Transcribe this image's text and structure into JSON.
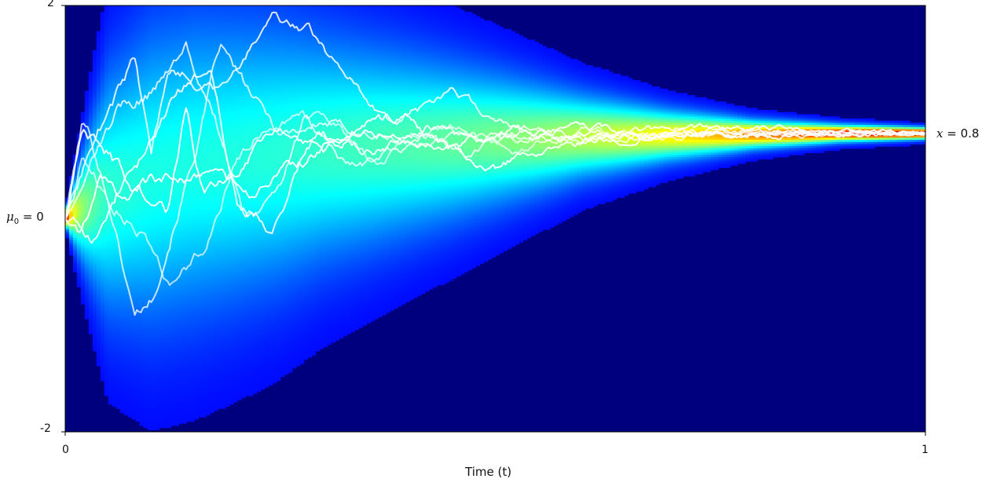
{
  "chart_data": {
    "type": "heatmap",
    "title": "",
    "xlabel": "Time (t)",
    "ylabel": "",
    "xlim": [
      0,
      1
    ],
    "ylim": [
      -2,
      2
    ],
    "x_ticks": [
      "0",
      "1"
    ],
    "y_ticks": [
      "2",
      "-2"
    ],
    "grid": false,
    "colormap": "jet",
    "background_color": "#00007f",
    "path_color": "#ffffff",
    "start_annotation": {
      "symbol": "μ",
      "subscript": "0",
      "value": "0",
      "y": 0
    },
    "end_annotation": {
      "variable": "x",
      "value": "0.8",
      "y": 0.8
    },
    "density": {
      "description_units": "mean and std of path distribution at time t",
      "t": [
        0.0,
        0.05,
        0.1,
        0.15,
        0.2,
        0.25,
        0.3,
        0.4,
        0.5,
        0.6,
        0.7,
        0.8,
        0.9,
        1.0
      ],
      "mean": [
        0.0,
        0.25,
        0.4,
        0.5,
        0.55,
        0.6,
        0.65,
        0.7,
        0.74,
        0.77,
        0.78,
        0.79,
        0.8,
        0.8
      ],
      "std": [
        0.02,
        0.45,
        0.55,
        0.55,
        0.52,
        0.48,
        0.42,
        0.33,
        0.24,
        0.15,
        0.09,
        0.05,
        0.03,
        0.02
      ]
    },
    "series": [
      {
        "t": [
          0.0,
          0.02,
          0.03,
          0.05,
          0.08,
          0.1,
          0.15,
          0.18,
          0.22,
          0.25,
          0.3,
          0.4,
          0.5,
          0.6,
          0.7,
          0.8,
          0.9,
          1.0
        ],
        "y": [
          0.0,
          0.9,
          0.75,
          0.2,
          -0.9,
          -0.75,
          0.6,
          1.6,
          1.1,
          0.8,
          0.9,
          0.7,
          0.8,
          0.75,
          0.78,
          0.8,
          0.8,
          0.8
        ]
      },
      {
        "t": [
          0.0,
          0.02,
          0.05,
          0.08,
          0.1,
          0.12,
          0.18,
          0.2,
          0.24,
          0.28,
          0.32,
          0.38,
          0.45,
          0.5,
          0.6,
          0.7,
          0.8,
          0.9,
          1.0
        ],
        "y": [
          0.0,
          0.5,
          1.0,
          1.5,
          0.6,
          1.4,
          1.2,
          1.4,
          1.9,
          1.8,
          1.4,
          0.9,
          1.2,
          0.9,
          0.75,
          0.85,
          0.8,
          0.8,
          0.8
        ]
      },
      {
        "t": [
          0.0,
          0.03,
          0.06,
          0.1,
          0.14,
          0.17,
          0.21,
          0.25,
          0.28,
          0.33,
          0.38,
          0.42,
          0.47,
          0.5,
          0.6,
          0.7,
          0.8,
          0.9,
          1.0
        ],
        "y": [
          0.0,
          0.6,
          1.0,
          1.2,
          1.6,
          1.1,
          0.0,
          0.3,
          0.95,
          0.5,
          0.6,
          0.8,
          0.6,
          0.75,
          0.78,
          0.8,
          0.8,
          0.8,
          0.8
        ]
      },
      {
        "t": [
          0.0,
          0.02,
          0.05,
          0.08,
          0.12,
          0.14,
          0.16,
          0.2,
          0.22,
          0.26,
          0.3,
          0.35,
          0.4,
          0.44,
          0.5,
          0.6,
          0.7,
          0.8,
          0.9,
          1.0
        ],
        "y": [
          0.0,
          0.8,
          0.6,
          0.25,
          0.05,
          1.0,
          0.25,
          0.4,
          0.7,
          0.8,
          0.6,
          0.9,
          0.95,
          0.65,
          0.5,
          0.7,
          0.8,
          0.85,
          0.8,
          0.8
        ]
      },
      {
        "t": [
          0.0,
          0.03,
          0.07,
          0.1,
          0.13,
          0.17,
          0.2,
          0.24,
          0.27,
          0.3,
          0.36,
          0.42,
          0.48,
          0.55,
          0.65,
          0.75,
          0.85,
          1.0
        ],
        "y": [
          0.0,
          -0.2,
          0.4,
          0.7,
          1.2,
          1.35,
          0.1,
          -0.1,
          0.5,
          0.85,
          0.6,
          0.85,
          0.75,
          0.82,
          0.8,
          0.8,
          0.8,
          0.8
        ]
      },
      {
        "t": [
          0.0,
          0.02,
          0.05,
          0.09,
          0.12,
          0.16,
          0.2,
          0.23,
          0.27,
          0.31,
          0.36,
          0.4,
          0.46,
          0.52,
          0.6,
          0.68,
          0.78,
          0.88,
          1.0
        ],
        "y": [
          0.0,
          0.55,
          0.2,
          -0.1,
          -0.55,
          -0.3,
          0.6,
          0.9,
          1.0,
          0.9,
          0.5,
          0.8,
          0.9,
          0.6,
          0.85,
          0.75,
          0.8,
          0.8,
          0.8
        ]
      },
      {
        "t": [
          0.0,
          0.02,
          0.04,
          0.07,
          0.1,
          0.14,
          0.18,
          0.22,
          0.26,
          0.3,
          0.35,
          0.4,
          0.45,
          0.52,
          0.6,
          0.7,
          0.8,
          0.9,
          1.0
        ],
        "y": [
          0.0,
          -0.1,
          0.3,
          0.2,
          0.35,
          0.4,
          0.35,
          0.2,
          0.45,
          0.65,
          0.85,
          0.75,
          0.7,
          0.8,
          0.85,
          0.8,
          0.78,
          0.8,
          0.8
        ]
      }
    ]
  }
}
